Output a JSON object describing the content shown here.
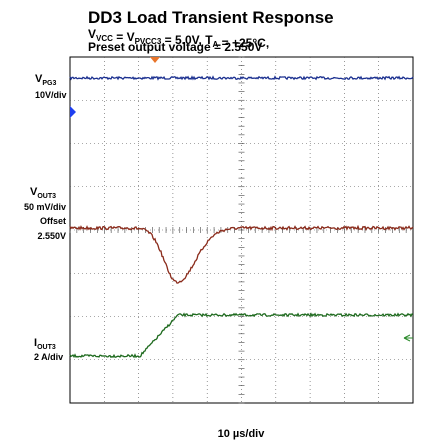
{
  "title": "DD3 Load Transient Response",
  "subtitle_lines": [
    [
      "V",
      {
        "sub": "VCC"
      },
      " = V",
      {
        "sub": "PVCC3"
      },
      " = 5.0V, T",
      {
        "sub": "A"
      },
      " = +25°C,"
    ],
    [
      "Preset output voltage = 2.550V"
    ]
  ],
  "channels": [
    {
      "name": [
        "V",
        {
          "sub": "PG3"
        }
      ],
      "scale": "10V/div"
    },
    {
      "name": [
        "V",
        {
          "sub": "OUT3"
        }
      ],
      "scale": "50 mV/div",
      "offset_label": "Offset",
      "offset": "2.550V"
    },
    {
      "name": [
        "I",
        {
          "sub": "OUT3"
        }
      ],
      "scale": "2 A/div"
    }
  ],
  "timebase": "10 µs/div"
}
